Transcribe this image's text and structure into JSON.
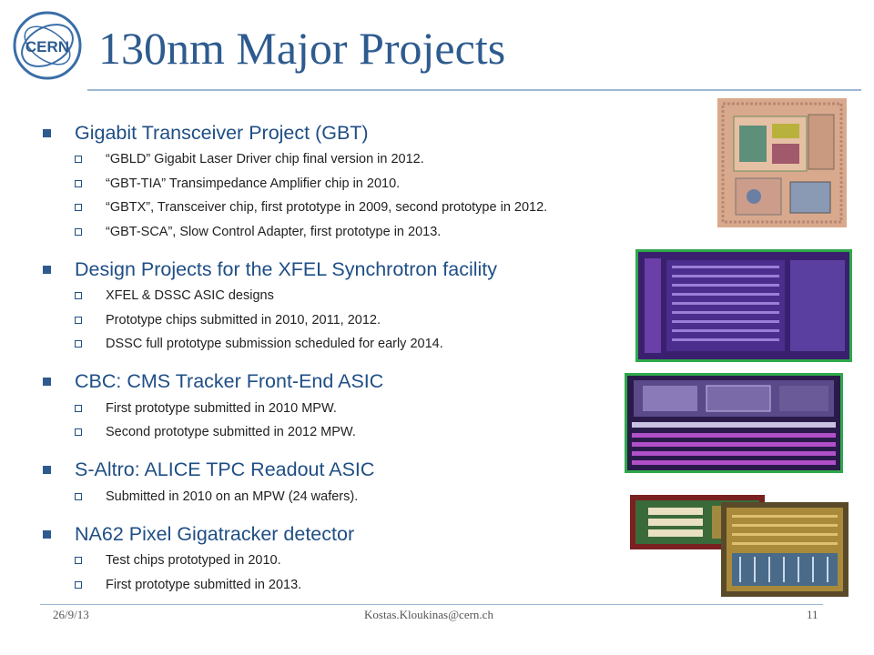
{
  "slide": {
    "title": "130nm Major Projects",
    "logo_text": "CERN",
    "items": [
      {
        "text": "Gigabit Transceiver Project (GBT)",
        "subs": [
          "“GBLD” Gigabit Laser Driver chip final version in 2012.",
          "“GBT-TIA” Transimpedance Amplifier chip in 2010.",
          "“GBTX”, Transceiver chip, first prototype in 2009, second prototype in 2012.",
          "“GBT-SCA”, Slow Control Adapter, first prototype in 2013."
        ]
      },
      {
        "text": "Design Projects for the XFEL Synchrotron facility",
        "subs": [
          "XFEL & DSSC ASIC designs",
          "Prototype chips submitted in 2010, 2011, 2012.",
          "DSSC full prototype submission scheduled for early 2014."
        ]
      },
      {
        "text": "CBC: CMS Tracker Front-End ASIC",
        "subs": [
          "First prototype submitted in 2010 MPW.",
          "Second prototype submitted in 2012 MPW."
        ]
      },
      {
        "text": "S-Altro: ALICE TPC Readout ASIC",
        "subs": [
          "Submitted in 2010 on an MPW (24 wafers)."
        ]
      },
      {
        "text": "NA62 Pixel Gigatracker detector",
        "subs": [
          "Test chips prototyped in 2010.",
          "First prototype submitted in 2013."
        ]
      }
    ],
    "footer": {
      "date": "26/9/13",
      "email": "Kostas.Kloukinas@cern.ch",
      "page": "11"
    }
  },
  "colors": {
    "title": "#2e5b8f",
    "bullet": "#2e5b8f",
    "item_text": "#1f4e85",
    "chip_border": "#2fa84a"
  }
}
